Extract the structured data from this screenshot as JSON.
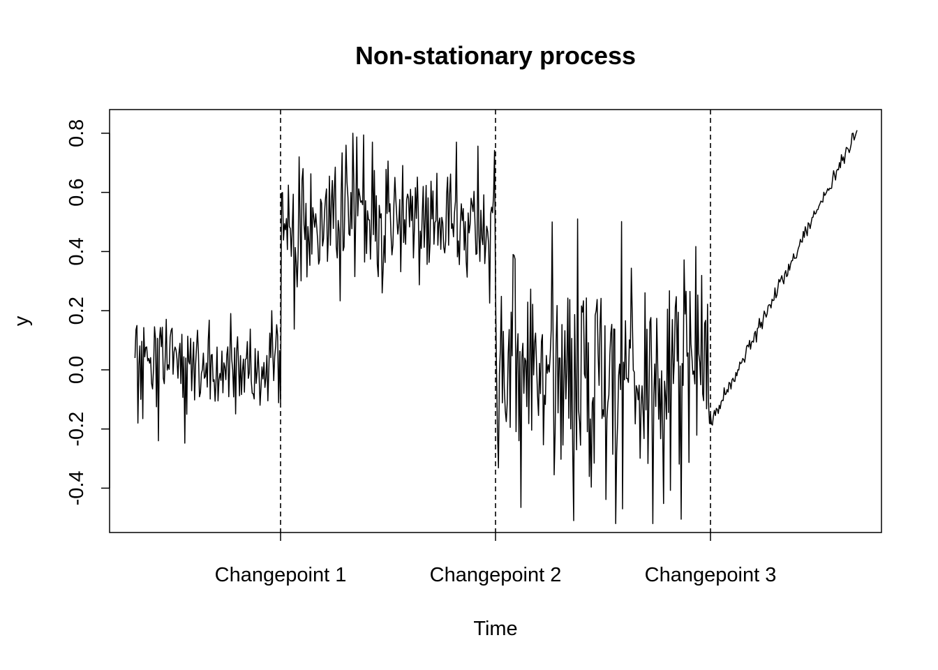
{
  "chart_data": {
    "type": "line",
    "title": "Non-stationary process",
    "xlabel": "Time",
    "ylabel": "y",
    "ylim": [
      -0.55,
      0.88
    ],
    "y_ticks": [
      -0.4,
      -0.2,
      0.0,
      0.2,
      0.4,
      0.6,
      0.8
    ],
    "y_tick_labels": [
      "-0.4",
      "-0.2",
      "0.0",
      "0.2",
      "0.4",
      "0.6",
      "0.8"
    ],
    "xlim": [
      -25,
      765
    ],
    "x_ticks": [
      150,
      370,
      590
    ],
    "x_tick_labels": [
      "Changepoint 1",
      "Changepoint 2",
      "Changepoint 3"
    ],
    "changepoints": [
      150,
      370,
      590
    ],
    "grid": false,
    "legend": "none",
    "line_color": "#000000",
    "series": [
      {
        "segments": [
          {
            "start": 1,
            "end": 150,
            "level": 0.0,
            "noise_sd": 0.085
          },
          {
            "start": 151,
            "end": 370,
            "level": 0.5,
            "noise_sd": 0.1
          },
          {
            "start": 371,
            "end": 590,
            "level": 0.0,
            "noise_sd": 0.2
          },
          {
            "start": 591,
            "end": 740,
            "level_start": -0.18,
            "level_end": 0.81,
            "noise_sd": 0.012
          }
        ],
        "samples": [
          {
            "x": 1,
            "y": 0.04
          },
          {
            "x": 3,
            "y": 0.15
          },
          {
            "x": 4,
            "y": -0.18
          },
          {
            "x": 25,
            "y": -0.24
          },
          {
            "x": 141,
            "y": 0.2
          },
          {
            "x": 169,
            "y": 0.72
          },
          {
            "x": 244,
            "y": 0.77
          },
          {
            "x": 254,
            "y": 0.26
          },
          {
            "x": 330,
            "y": 0.77
          },
          {
            "x": 366,
            "y": 0.55
          },
          {
            "x": 388,
            "y": 0.39
          },
          {
            "x": 428,
            "y": 0.5
          },
          {
            "x": 450,
            "y": -0.51
          },
          {
            "x": 500,
            "y": -0.47
          },
          {
            "x": 590,
            "y": -0.15
          },
          {
            "x": 740,
            "y": 0.81
          }
        ]
      }
    ]
  }
}
